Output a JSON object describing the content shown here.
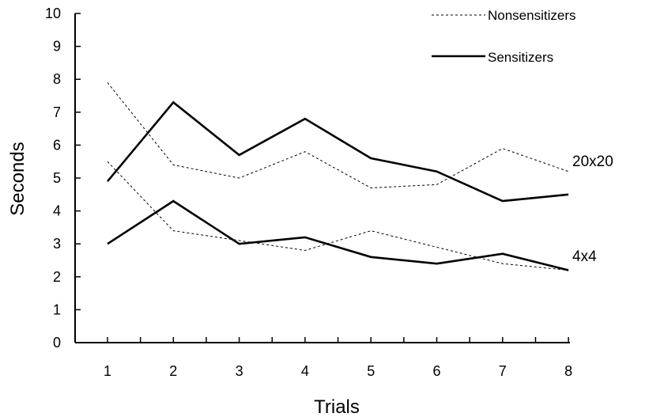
{
  "chart_data": {
    "type": "line",
    "title": "",
    "xlabel": "Trials",
    "ylabel": "Seconds",
    "ylim": [
      0,
      10
    ],
    "yticks": [
      "0",
      "1",
      "2",
      "3",
      "4",
      "5",
      "6",
      "7",
      "8",
      "9",
      "10"
    ],
    "categories": [
      "1",
      "2",
      "3",
      "4",
      "5",
      "6",
      "7",
      "8"
    ],
    "grid": false,
    "legend": {
      "placement": "top-right",
      "entries": [
        {
          "label": "Nonsensitizers",
          "style": "dashed"
        },
        {
          "label": "Sensitizers",
          "style": "solid"
        }
      ]
    },
    "annotations": [
      "20x20",
      "4x4"
    ],
    "series": [
      {
        "legend": "Nonsensitizers",
        "group": "20x20",
        "style": "dashed",
        "values": [
          7.9,
          5.4,
          5.0,
          5.8,
          4.7,
          4.8,
          5.9,
          5.2
        ]
      },
      {
        "legend": "Sensitizers",
        "group": "20x20",
        "style": "solid",
        "values": [
          4.9,
          7.3,
          5.7,
          6.8,
          5.6,
          5.2,
          4.3,
          4.5
        ]
      },
      {
        "legend": "Nonsensitizers",
        "group": "4x4",
        "style": "dashed",
        "values": [
          5.5,
          3.4,
          3.1,
          2.8,
          3.4,
          2.9,
          2.4,
          2.2
        ]
      },
      {
        "legend": "Sensitizers",
        "group": "4x4",
        "style": "solid",
        "values": [
          3.0,
          4.3,
          3.0,
          3.2,
          2.6,
          2.4,
          2.7,
          2.2
        ]
      }
    ]
  }
}
